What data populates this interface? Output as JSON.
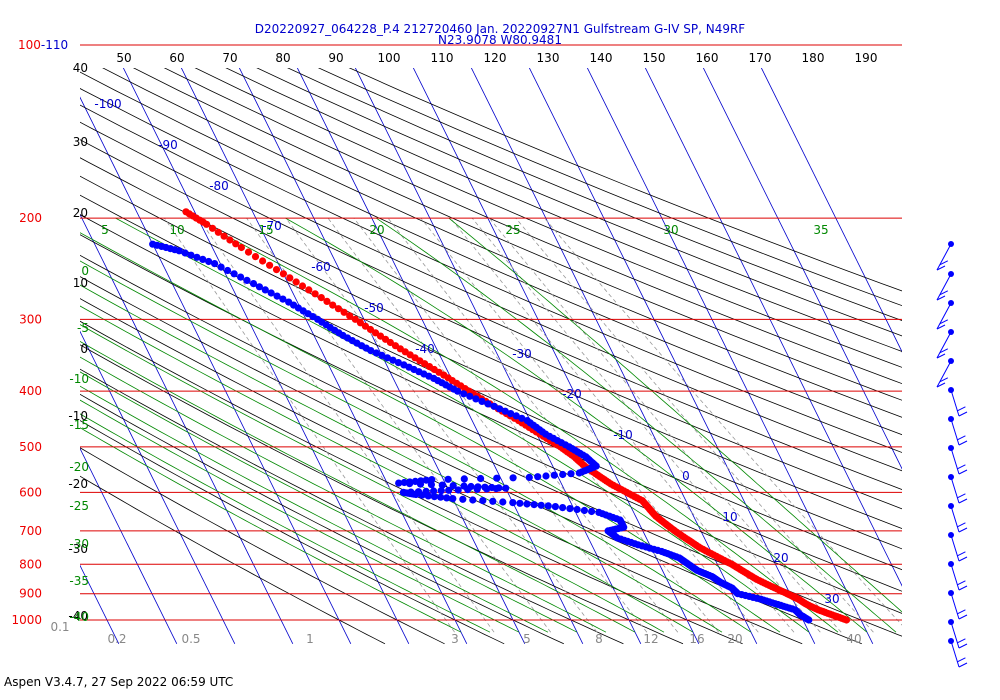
{
  "header": {
    "title_line1": "D20220927_064228_P.4 212720460 Jan. 20220927N1 Gulfstream G-IV SP, N49RF",
    "title_line2": "N23.9078 W80.9481"
  },
  "footer": {
    "text": "Aspen V3.4.7, 27 Sep 2022  06:59 UTC"
  },
  "colors": {
    "temperature": "#ff0000",
    "dewpoint": "#0000ff",
    "isobar": "#dd0000",
    "isotherm": "#0000cc",
    "dry_adiabat": "#000000",
    "moist_adiabat": "#008800",
    "mixing_ratio": "#999999"
  },
  "chart_data": {
    "type": "scatter",
    "title": "",
    "pressure_labels": [
      "100-110",
      "200",
      "300",
      "400",
      "500",
      "600",
      "700",
      "800",
      "900",
      "1000"
    ],
    "top_tick_labels": [
      "50",
      "60",
      "70",
      "80",
      "90",
      "100",
      "110",
      "120",
      "130",
      "140",
      "150",
      "160",
      "170",
      "180",
      "190"
    ],
    "left_black_labels": [
      "40",
      "30",
      "20",
      "10",
      "0",
      "-10",
      "-20",
      "-30",
      "-40"
    ],
    "left_green_labels": [
      "0",
      "-5",
      "-10",
      "-15",
      "-20",
      "-25",
      "-30",
      "-35",
      "-40"
    ],
    "isotherm_labels": [
      "-100",
      "-90",
      "-80",
      "-70",
      "-60",
      "-50",
      "-40",
      "-30",
      "-20",
      "-10",
      "0",
      "10",
      "20",
      "30"
    ],
    "moist_labels_top": [
      "5",
      "10",
      "15",
      "20",
      "25",
      "30",
      "35"
    ],
    "mixing_ratio_labels": [
      "0.1",
      "0.2",
      "0.5",
      "1",
      "3",
      "5",
      "8",
      "12",
      "16",
      "20",
      "40"
    ],
    "series": [
      {
        "id": "temperature",
        "points": [
          {
            "p": 1000,
            "t": 27.5
          },
          {
            "p": 980,
            "t": 25.5
          },
          {
            "p": 960,
            "t": 23.5
          },
          {
            "p": 940,
            "t": 22.0
          },
          {
            "p": 920,
            "t": 21.0
          },
          {
            "p": 900,
            "t": 19.5
          },
          {
            "p": 875,
            "t": 17.5
          },
          {
            "p": 850,
            "t": 15.5
          },
          {
            "p": 825,
            "t": 14.0
          },
          {
            "p": 800,
            "t": 12.5
          },
          {
            "p": 775,
            "t": 10.5
          },
          {
            "p": 750,
            "t": 8.5
          },
          {
            "p": 725,
            "t": 7.0
          },
          {
            "p": 700,
            "t": 5.5
          },
          {
            "p": 680,
            "t": 4.5
          },
          {
            "p": 660,
            "t": 3.5
          },
          {
            "p": 640,
            "t": 3.0
          },
          {
            "p": 620,
            "t": 2.5
          },
          {
            "p": 600,
            "t": 0.5
          },
          {
            "p": 580,
            "t": -1.5
          },
          {
            "p": 560,
            "t": -3.0
          },
          {
            "p": 540,
            "t": -4.5
          },
          {
            "p": 520,
            "t": -5.5
          },
          {
            "p": 500,
            "t": -7.0
          },
          {
            "p": 475,
            "t": -9.5
          },
          {
            "p": 450,
            "t": -12.0
          },
          {
            "p": 425,
            "t": -15.0
          },
          {
            "p": 400,
            "t": -18.0
          },
          {
            "p": 375,
            "t": -21.0
          },
          {
            "p": 350,
            "t": -24.5
          },
          {
            "p": 325,
            "t": -28.0
          },
          {
            "p": 300,
            "t": -31.5
          },
          {
            "p": 275,
            "t": -35.5
          },
          {
            "p": 250,
            "t": -40.0
          },
          {
            "p": 225,
            "t": -45.0
          },
          {
            "p": 205,
            "t": -49.0
          },
          {
            "p": 195,
            "t": -51.5
          }
        ]
      },
      {
        "id": "dewpoint",
        "points": [
          {
            "p": 1000,
            "t": 21.0
          },
          {
            "p": 980,
            "t": 20.0
          },
          {
            "p": 960,
            "t": 19.5
          },
          {
            "p": 940,
            "t": 17.0
          },
          {
            "p": 920,
            "t": 14.5
          },
          {
            "p": 900,
            "t": 11.0
          },
          {
            "p": 880,
            "t": 10.5
          },
          {
            "p": 860,
            "t": 9.0
          },
          {
            "p": 840,
            "t": 8.0
          },
          {
            "p": 820,
            "t": 6.0
          },
          {
            "p": 800,
            "t": 5.0
          },
          {
            "p": 780,
            "t": 4.0
          },
          {
            "p": 760,
            "t": 1.5
          },
          {
            "p": 740,
            "t": -2.0
          },
          {
            "p": 720,
            "t": -5.0
          },
          {
            "p": 700,
            "t": -6.0
          },
          {
            "p": 690,
            "t": -3.0
          },
          {
            "p": 670,
            "t": -3.0
          },
          {
            "p": 650,
            "t": -6.0
          },
          {
            "p": 635,
            "t": -13.0
          },
          {
            "p": 625,
            "t": -20.0
          },
          {
            "p": 615,
            "t": -30.0
          },
          {
            "p": 605,
            "t": -36.0
          },
          {
            "p": 600,
            "t": -38.0
          },
          {
            "p": 595,
            "t": -30.0
          },
          {
            "p": 590,
            "t": -20.0
          },
          {
            "p": 585,
            "t": -27.0
          },
          {
            "p": 578,
            "t": -38.0
          },
          {
            "p": 570,
            "t": -32.0
          },
          {
            "p": 565,
            "t": -15.0
          },
          {
            "p": 555,
            "t": -6.0
          },
          {
            "p": 540,
            "t": -2.5
          },
          {
            "p": 520,
            "t": -3.5
          },
          {
            "p": 500,
            "t": -5.5
          },
          {
            "p": 475,
            "t": -8.5
          },
          {
            "p": 450,
            "t": -10.5
          },
          {
            "p": 425,
            "t": -15.0
          },
          {
            "p": 400,
            "t": -20.0
          },
          {
            "p": 380,
            "t": -23.0
          },
          {
            "p": 360,
            "t": -27.0
          },
          {
            "p": 340,
            "t": -31.5
          },
          {
            "p": 320,
            "t": -35.0
          },
          {
            "p": 300,
            "t": -38.0
          },
          {
            "p": 280,
            "t": -41.5
          },
          {
            "p": 260,
            "t": -46.0
          },
          {
            "p": 240,
            "t": -51.0
          },
          {
            "p": 228,
            "t": -56.0
          },
          {
            "p": 222,
            "t": -60.0
          }
        ]
      }
    ]
  }
}
